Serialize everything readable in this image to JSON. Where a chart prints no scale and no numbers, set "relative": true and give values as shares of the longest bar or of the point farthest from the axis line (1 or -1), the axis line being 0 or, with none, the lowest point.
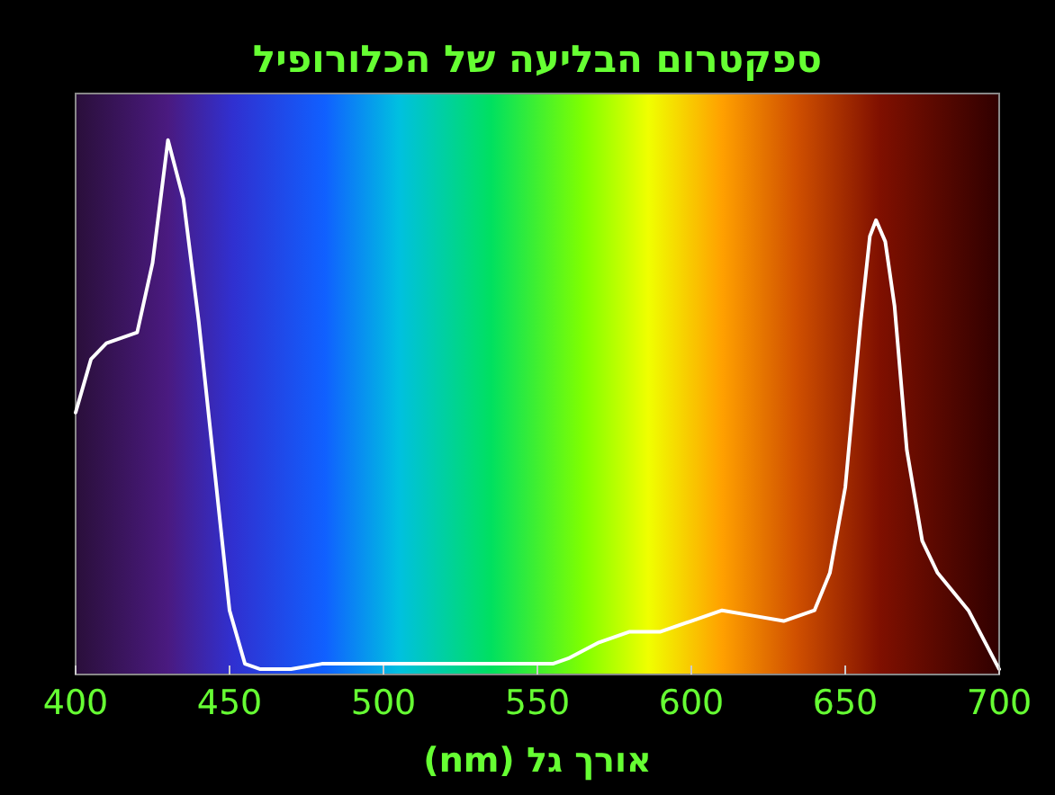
{
  "chart_data": {
    "type": "line",
    "title": "ספקטרום הבליעה של הכלורופיל",
    "xlabel": "אורך גל (nm)",
    "relative": true,
    "x": [
      400,
      405,
      410,
      415,
      420,
      425,
      430,
      435,
      440,
      445,
      450,
      455,
      460,
      470,
      480,
      500,
      520,
      540,
      555,
      560,
      570,
      580,
      590,
      600,
      610,
      620,
      630,
      640,
      645,
      650,
      655,
      658,
      660,
      663,
      666,
      670,
      675,
      680,
      690,
      700
    ],
    "series": [
      {
        "color": "#ffffff",
        "values": [
          0.49,
          0.59,
          0.62,
          0.63,
          0.64,
          0.77,
          1,
          0.89,
          0.66,
          0.39,
          0.12,
          0.02,
          0.01,
          0.01,
          0.02,
          0.02,
          0.02,
          0.02,
          0.02,
          0.03,
          0.06,
          0.08,
          0.08,
          0.1,
          0.12,
          0.11,
          0.1,
          0.12,
          0.19,
          0.35,
          0.66,
          0.82,
          0.85,
          0.81,
          0.69,
          0.42,
          0.25,
          0.19,
          0.12,
          0.01
        ]
      }
    ],
    "xlim": [
      400,
      700
    ],
    "xticks": [
      400,
      450,
      500,
      550,
      600,
      650,
      700
    ],
    "grid": false,
    "marker": "none",
    "line_style": "solid"
  }
}
